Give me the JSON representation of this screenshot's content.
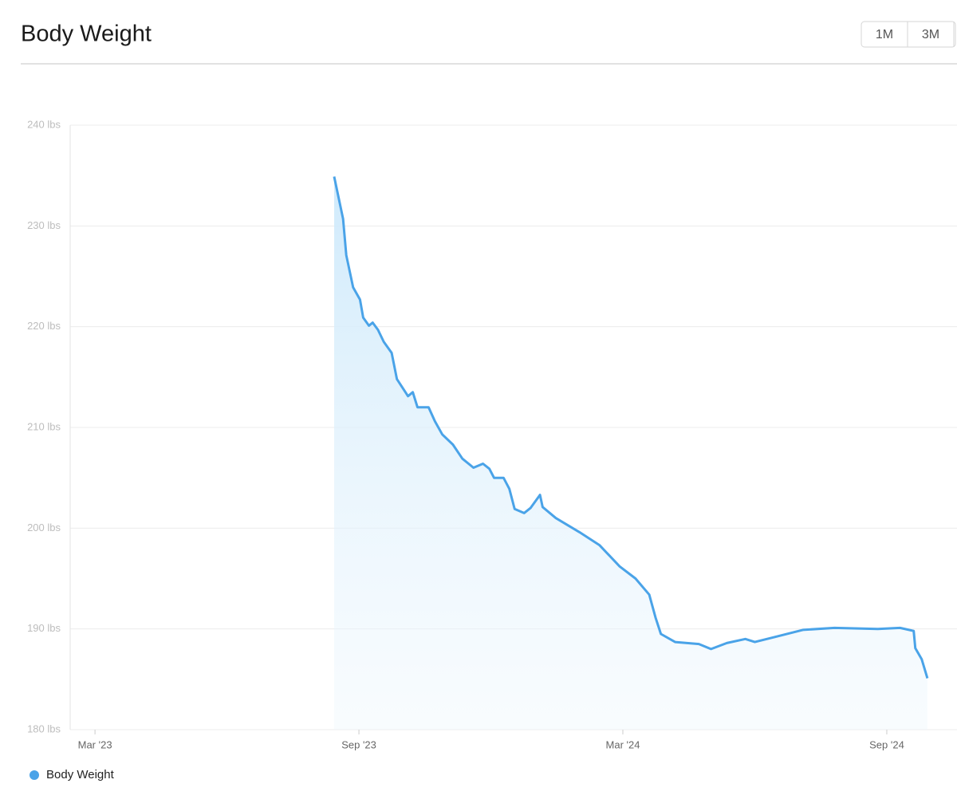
{
  "header": {
    "title": "Body Weight",
    "buttons": [
      "1M",
      "3M"
    ]
  },
  "chart_data": {
    "type": "line",
    "area": true,
    "xlim": [
      2023.12,
      2024.8
    ],
    "xticks": [
      {
        "value": 2023.167,
        "label": "Mar '23"
      },
      {
        "value": 2023.667,
        "label": "Sep '23"
      },
      {
        "value": 2024.167,
        "label": "Mar '24"
      },
      {
        "value": 2024.667,
        "label": "Sep '24"
      }
    ],
    "ylim": [
      180,
      240
    ],
    "yticks": [
      {
        "value": 180,
        "label": "180 lbs"
      },
      {
        "value": 190,
        "label": "190 lbs"
      },
      {
        "value": 200,
        "label": "200 lbs"
      },
      {
        "value": 210,
        "label": "210 lbs"
      },
      {
        "value": 220,
        "label": "220 lbs"
      },
      {
        "value": 230,
        "label": "230 lbs"
      },
      {
        "value": 240,
        "label": "240 lbs"
      }
    ],
    "grid": true,
    "x": [
      2023.62,
      2023.637,
      2023.643,
      2023.656,
      2023.669,
      2023.675,
      2023.686,
      2023.693,
      2023.703,
      2023.714,
      2023.729,
      2023.739,
      2023.76,
      2023.769,
      2023.778,
      2023.799,
      2023.811,
      2023.825,
      2023.845,
      2023.863,
      2023.884,
      2023.902,
      2023.914,
      2023.923,
      2023.941,
      2023.952,
      2023.962,
      2023.98,
      2023.992,
      2024.01,
      2024.015,
      2024.04,
      2024.085,
      2024.123,
      2024.161,
      2024.191,
      2024.217,
      2024.229,
      2024.239,
      2024.266,
      2024.311,
      2024.334,
      2024.364,
      2024.399,
      2024.417,
      2024.455,
      2024.508,
      2024.568,
      2024.65,
      2024.692,
      2024.718,
      2024.721,
      2024.733,
      2024.744
    ],
    "series": [
      {
        "name": "Body Weight",
        "color": "#4aa3e8",
        "values": [
          234.9,
          230.7,
          227.1,
          223.9,
          222.7,
          220.9,
          220.1,
          220.4,
          219.7,
          218.5,
          217.4,
          214.8,
          213.1,
          213.5,
          212.0,
          212.0,
          210.6,
          209.3,
          208.3,
          206.9,
          206.0,
          206.4,
          205.9,
          205.0,
          205.0,
          203.9,
          201.9,
          201.5,
          202.0,
          203.3,
          202.1,
          201.0,
          199.6,
          198.3,
          196.2,
          195.0,
          193.4,
          191.1,
          189.5,
          188.7,
          188.5,
          188.0,
          188.6,
          189.0,
          188.7,
          189.2,
          189.9,
          190.1,
          190.0,
          190.1,
          189.8,
          188.1,
          187.0,
          185.1
        ]
      }
    ]
  }
}
